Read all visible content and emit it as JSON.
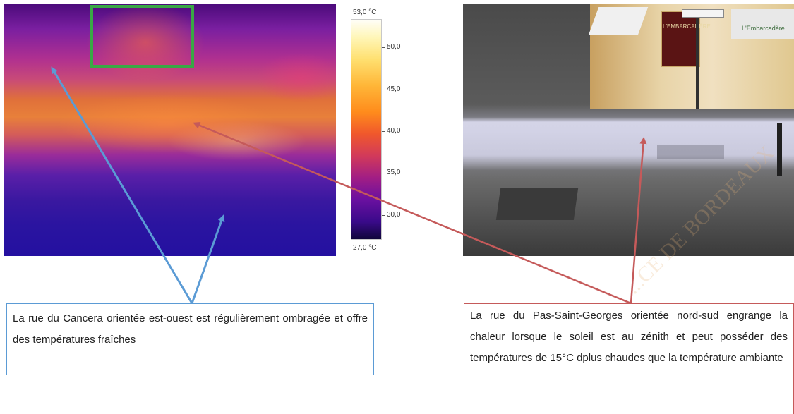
{
  "thermal_scale": {
    "max_label": "53,0 °C",
    "min_label": "27,0 °C",
    "ticks": [
      "50,0",
      "45,0",
      "40,0",
      "35,0",
      "30,0"
    ]
  },
  "photo": {
    "sign_text": "L'EMBARCADÈRE",
    "awning_text": "L'Embarcadère"
  },
  "captions": {
    "left": "La rue du Cancera orientée est-ouest est régulièrement ombragée et offre des températures fraîches",
    "right": "La rue du Pas-Saint-Georges orientée nord-sud engrange la chaleur lorsque le soleil est au zénith et peut posséder des températures de 15°C dplus chaudes que la température ambiante"
  },
  "watermark": "...CE DE BORDEAUX",
  "colors": {
    "blue_arrow": "#5b9bd5",
    "red_arrow": "#c55a5a",
    "green_box": "#39a845"
  }
}
